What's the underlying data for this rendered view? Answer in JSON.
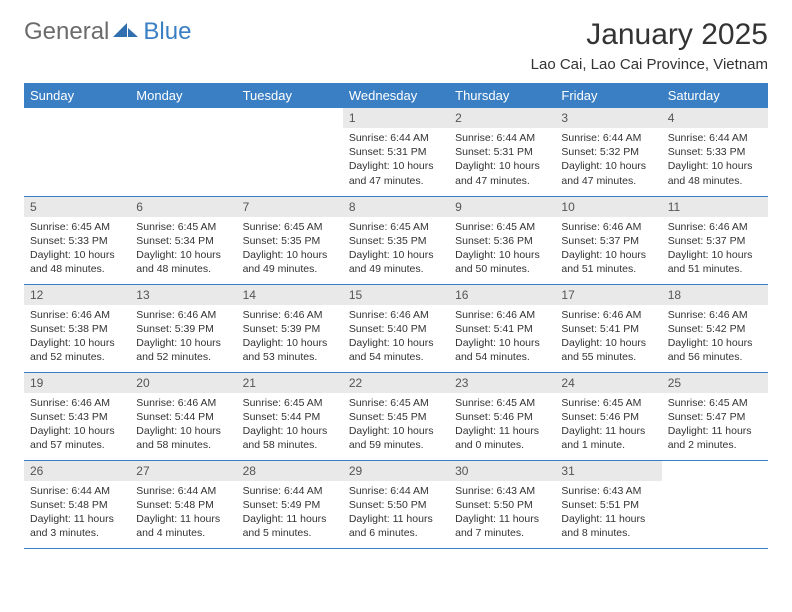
{
  "brand": {
    "general": "General",
    "blue": "Blue",
    "accent_color": "#3a7fc4"
  },
  "title": "January 2025",
  "location": "Lao Cai, Lao Cai Province, Vietnam",
  "colors": {
    "header_bg": "#3a7fc4",
    "header_text": "#ffffff",
    "daynum_bg": "#e9e9e9",
    "border": "#3a7fc4",
    "text": "#333333",
    "background": "#ffffff"
  },
  "weekdays": [
    "Sunday",
    "Monday",
    "Tuesday",
    "Wednesday",
    "Thursday",
    "Friday",
    "Saturday"
  ],
  "weeks": [
    [
      null,
      null,
      null,
      {
        "n": "1",
        "sr": "Sunrise: 6:44 AM",
        "ss": "Sunset: 5:31 PM",
        "dl": "Daylight: 10 hours and 47 minutes."
      },
      {
        "n": "2",
        "sr": "Sunrise: 6:44 AM",
        "ss": "Sunset: 5:31 PM",
        "dl": "Daylight: 10 hours and 47 minutes."
      },
      {
        "n": "3",
        "sr": "Sunrise: 6:44 AM",
        "ss": "Sunset: 5:32 PM",
        "dl": "Daylight: 10 hours and 47 minutes."
      },
      {
        "n": "4",
        "sr": "Sunrise: 6:44 AM",
        "ss": "Sunset: 5:33 PM",
        "dl": "Daylight: 10 hours and 48 minutes."
      }
    ],
    [
      {
        "n": "5",
        "sr": "Sunrise: 6:45 AM",
        "ss": "Sunset: 5:33 PM",
        "dl": "Daylight: 10 hours and 48 minutes."
      },
      {
        "n": "6",
        "sr": "Sunrise: 6:45 AM",
        "ss": "Sunset: 5:34 PM",
        "dl": "Daylight: 10 hours and 48 minutes."
      },
      {
        "n": "7",
        "sr": "Sunrise: 6:45 AM",
        "ss": "Sunset: 5:35 PM",
        "dl": "Daylight: 10 hours and 49 minutes."
      },
      {
        "n": "8",
        "sr": "Sunrise: 6:45 AM",
        "ss": "Sunset: 5:35 PM",
        "dl": "Daylight: 10 hours and 49 minutes."
      },
      {
        "n": "9",
        "sr": "Sunrise: 6:45 AM",
        "ss": "Sunset: 5:36 PM",
        "dl": "Daylight: 10 hours and 50 minutes."
      },
      {
        "n": "10",
        "sr": "Sunrise: 6:46 AM",
        "ss": "Sunset: 5:37 PM",
        "dl": "Daylight: 10 hours and 51 minutes."
      },
      {
        "n": "11",
        "sr": "Sunrise: 6:46 AM",
        "ss": "Sunset: 5:37 PM",
        "dl": "Daylight: 10 hours and 51 minutes."
      }
    ],
    [
      {
        "n": "12",
        "sr": "Sunrise: 6:46 AM",
        "ss": "Sunset: 5:38 PM",
        "dl": "Daylight: 10 hours and 52 minutes."
      },
      {
        "n": "13",
        "sr": "Sunrise: 6:46 AM",
        "ss": "Sunset: 5:39 PM",
        "dl": "Daylight: 10 hours and 52 minutes."
      },
      {
        "n": "14",
        "sr": "Sunrise: 6:46 AM",
        "ss": "Sunset: 5:39 PM",
        "dl": "Daylight: 10 hours and 53 minutes."
      },
      {
        "n": "15",
        "sr": "Sunrise: 6:46 AM",
        "ss": "Sunset: 5:40 PM",
        "dl": "Daylight: 10 hours and 54 minutes."
      },
      {
        "n": "16",
        "sr": "Sunrise: 6:46 AM",
        "ss": "Sunset: 5:41 PM",
        "dl": "Daylight: 10 hours and 54 minutes."
      },
      {
        "n": "17",
        "sr": "Sunrise: 6:46 AM",
        "ss": "Sunset: 5:41 PM",
        "dl": "Daylight: 10 hours and 55 minutes."
      },
      {
        "n": "18",
        "sr": "Sunrise: 6:46 AM",
        "ss": "Sunset: 5:42 PM",
        "dl": "Daylight: 10 hours and 56 minutes."
      }
    ],
    [
      {
        "n": "19",
        "sr": "Sunrise: 6:46 AM",
        "ss": "Sunset: 5:43 PM",
        "dl": "Daylight: 10 hours and 57 minutes."
      },
      {
        "n": "20",
        "sr": "Sunrise: 6:46 AM",
        "ss": "Sunset: 5:44 PM",
        "dl": "Daylight: 10 hours and 58 minutes."
      },
      {
        "n": "21",
        "sr": "Sunrise: 6:45 AM",
        "ss": "Sunset: 5:44 PM",
        "dl": "Daylight: 10 hours and 58 minutes."
      },
      {
        "n": "22",
        "sr": "Sunrise: 6:45 AM",
        "ss": "Sunset: 5:45 PM",
        "dl": "Daylight: 10 hours and 59 minutes."
      },
      {
        "n": "23",
        "sr": "Sunrise: 6:45 AM",
        "ss": "Sunset: 5:46 PM",
        "dl": "Daylight: 11 hours and 0 minutes."
      },
      {
        "n": "24",
        "sr": "Sunrise: 6:45 AM",
        "ss": "Sunset: 5:46 PM",
        "dl": "Daylight: 11 hours and 1 minute."
      },
      {
        "n": "25",
        "sr": "Sunrise: 6:45 AM",
        "ss": "Sunset: 5:47 PM",
        "dl": "Daylight: 11 hours and 2 minutes."
      }
    ],
    [
      {
        "n": "26",
        "sr": "Sunrise: 6:44 AM",
        "ss": "Sunset: 5:48 PM",
        "dl": "Daylight: 11 hours and 3 minutes."
      },
      {
        "n": "27",
        "sr": "Sunrise: 6:44 AM",
        "ss": "Sunset: 5:48 PM",
        "dl": "Daylight: 11 hours and 4 minutes."
      },
      {
        "n": "28",
        "sr": "Sunrise: 6:44 AM",
        "ss": "Sunset: 5:49 PM",
        "dl": "Daylight: 11 hours and 5 minutes."
      },
      {
        "n": "29",
        "sr": "Sunrise: 6:44 AM",
        "ss": "Sunset: 5:50 PM",
        "dl": "Daylight: 11 hours and 6 minutes."
      },
      {
        "n": "30",
        "sr": "Sunrise: 6:43 AM",
        "ss": "Sunset: 5:50 PM",
        "dl": "Daylight: 11 hours and 7 minutes."
      },
      {
        "n": "31",
        "sr": "Sunrise: 6:43 AM",
        "ss": "Sunset: 5:51 PM",
        "dl": "Daylight: 11 hours and 8 minutes."
      },
      null
    ]
  ]
}
